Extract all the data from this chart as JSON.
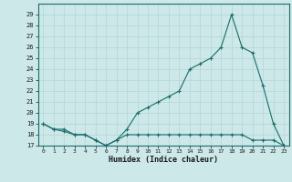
{
  "xlabel": "Humidex (Indice chaleur)",
  "ylabel": "",
  "bg_color": "#cce8e8",
  "grid_color": "#b8d8d8",
  "line_color": "#1a6b6b",
  "x_humidex": [
    0,
    1,
    2,
    3,
    4,
    5,
    6,
    7,
    8,
    9,
    10,
    11,
    12,
    13,
    14,
    15,
    16,
    17,
    18,
    19,
    20,
    21,
    22,
    23
  ],
  "y_humidex": [
    19,
    18.5,
    18.5,
    18,
    18,
    17.5,
    17,
    17.5,
    18.5,
    20,
    20.5,
    21,
    21.5,
    22,
    24,
    24.5,
    25,
    26,
    29,
    26,
    25.5,
    22.5,
    19,
    17
  ],
  "x_temp": [
    0,
    1,
    2,
    3,
    4,
    5,
    6,
    7,
    8,
    9,
    10,
    11,
    12,
    13,
    14,
    15,
    16,
    17,
    18,
    19,
    20,
    21,
    22,
    23
  ],
  "y_temp": [
    19,
    18.5,
    18.3,
    18,
    18,
    17.5,
    17,
    17.5,
    18,
    18,
    18,
    18,
    18,
    18,
    18,
    18,
    18,
    18,
    18,
    18,
    17.5,
    17.5,
    17.5,
    17
  ],
  "ylim": [
    17,
    30
  ],
  "xlim": [
    -0.5,
    23.5
  ],
  "yticks": [
    17,
    18,
    19,
    20,
    21,
    22,
    23,
    24,
    25,
    26,
    27,
    28,
    29
  ],
  "xticks": [
    0,
    1,
    2,
    3,
    4,
    5,
    6,
    7,
    8,
    9,
    10,
    11,
    12,
    13,
    14,
    15,
    16,
    17,
    18,
    19,
    20,
    21,
    22,
    23
  ]
}
